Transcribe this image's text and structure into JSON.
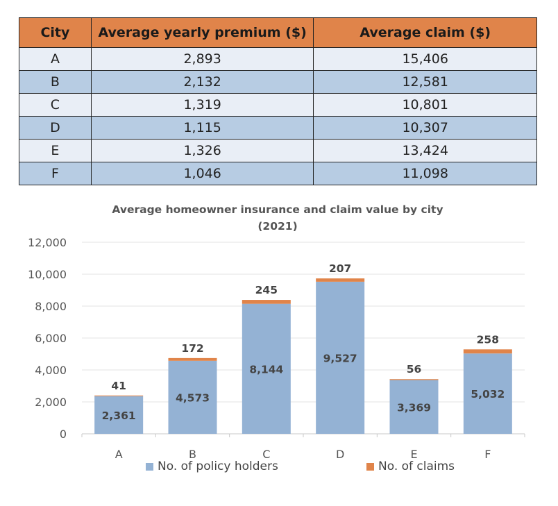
{
  "table": {
    "headers": [
      "City",
      "Average yearly premium ($)",
      "Average claim ($)"
    ],
    "rows": [
      [
        "A",
        "2,893",
        "15,406"
      ],
      [
        "B",
        "2,132",
        "12,581"
      ],
      [
        "C",
        "1,319",
        "10,801"
      ],
      [
        "D",
        "1,115",
        "10,307"
      ],
      [
        "E",
        "1,326",
        "13,424"
      ],
      [
        "F",
        "1,046",
        "11,098"
      ]
    ]
  },
  "chart_data": {
    "type": "bar",
    "stacked": true,
    "title": "Average homeowner insurance and claim value by city (2021)",
    "title_lines": [
      "Average homeowner insurance and claim value by city",
      "(2021)"
    ],
    "categories": [
      "A",
      "B",
      "C",
      "D",
      "E",
      "F"
    ],
    "series": [
      {
        "name": "No. of policy holders",
        "values": [
          2361,
          4573,
          8144,
          9527,
          3369,
          5032
        ],
        "color": "#94b2d4"
      },
      {
        "name": "No. of claims",
        "values": [
          41,
          172,
          245,
          207,
          56,
          258
        ],
        "color": "#e0844a"
      }
    ],
    "value_labels": {
      "policy_holders": [
        "2,361",
        "4,573",
        "8,144",
        "9,527",
        "3,369",
        "5,032"
      ],
      "claims": [
        "41",
        "172",
        "245",
        "207",
        "56",
        "258"
      ]
    },
    "ylim": [
      0,
      12000
    ],
    "yticks": [
      0,
      2000,
      4000,
      6000,
      8000,
      10000,
      12000
    ],
    "ytick_labels": [
      "0",
      "2,000",
      "4,000",
      "6,000",
      "8,000",
      "10,000",
      "12,000"
    ],
    "grid": true,
    "legend_position": "bottom",
    "xlabel": "",
    "ylabel": ""
  }
}
